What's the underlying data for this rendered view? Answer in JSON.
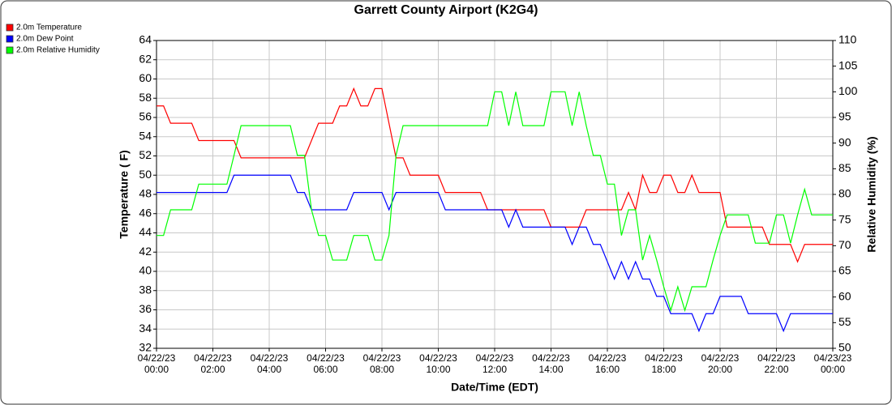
{
  "chart_data": {
    "type": "line",
    "title": "Garrett County Airport (K2G4)",
    "xlabel": "Date/Time (EDT)",
    "ylabel": "Temperature ( F)",
    "y2label": "Relative Humidity (%)",
    "x": [
      0,
      0.25,
      0.5,
      0.75,
      1,
      1.25,
      1.5,
      1.75,
      2,
      2.25,
      2.5,
      2.75,
      3,
      3.25,
      3.5,
      3.75,
      4,
      4.25,
      4.5,
      4.75,
      5,
      5.25,
      5.5,
      5.75,
      6,
      6.25,
      6.5,
      6.75,
      7,
      7.25,
      7.5,
      7.75,
      8,
      8.25,
      8.5,
      8.75,
      9,
      9.25,
      9.5,
      9.75,
      10,
      10.25,
      10.5,
      10.75,
      11,
      11.25,
      11.5,
      11.75,
      12,
      12.25,
      12.5,
      12.75,
      13,
      13.25,
      13.5,
      13.75,
      14,
      14.25,
      14.5,
      14.75,
      15,
      15.25,
      15.5,
      15.75,
      16,
      16.25,
      16.5,
      16.75,
      17,
      17.25,
      17.5,
      17.75,
      18,
      18.25,
      18.5,
      18.75,
      19,
      19.25,
      19.5,
      19.75,
      20,
      20.25,
      20.5,
      20.75,
      21,
      21.25,
      21.5,
      21.75,
      22,
      22.25,
      22.5,
      22.75,
      23,
      23.25,
      23.5,
      23.75,
      24
    ],
    "series": [
      {
        "name": "2.0m Temperature",
        "color": "#ff0000",
        "axis": "y",
        "values": [
          57.2,
          57.2,
          55.4,
          55.4,
          55.4,
          55.4,
          53.6,
          53.6,
          53.6,
          53.6,
          53.6,
          53.6,
          51.8,
          51.8,
          51.8,
          51.8,
          51.8,
          51.8,
          51.8,
          51.8,
          51.8,
          51.8,
          53.6,
          55.4,
          55.4,
          55.4,
          57.2,
          57.2,
          59,
          57.2,
          57.2,
          59,
          59,
          55.4,
          51.8,
          51.8,
          50,
          50,
          50,
          50,
          50,
          48.2,
          48.2,
          48.2,
          48.2,
          48.2,
          48.2,
          46.4,
          46.4,
          46.4,
          46.4,
          46.4,
          46.4,
          46.4,
          46.4,
          46.4,
          44.6,
          44.6,
          44.6,
          44.6,
          44.6,
          46.4,
          46.4,
          46.4,
          46.4,
          46.4,
          46.4,
          48.2,
          46.4,
          50,
          48.2,
          48.2,
          50,
          50,
          48.2,
          48.2,
          50,
          48.2,
          48.2,
          48.2,
          48.2,
          44.6,
          44.6,
          44.6,
          44.6,
          44.6,
          44.6,
          42.8,
          42.8,
          42.8,
          42.8,
          41,
          42.8,
          42.8,
          42.8,
          42.8,
          42.8
        ]
      },
      {
        "name": "2.0m Dew Point",
        "color": "#0000ff",
        "axis": "y",
        "values": [
          48.2,
          48.2,
          48.2,
          48.2,
          48.2,
          48.2,
          48.2,
          48.2,
          48.2,
          48.2,
          48.2,
          50,
          50,
          50,
          50,
          50,
          50,
          50,
          50,
          50,
          48.2,
          48.2,
          46.4,
          46.4,
          46.4,
          46.4,
          46.4,
          46.4,
          48.2,
          48.2,
          48.2,
          48.2,
          48.2,
          46.4,
          48.2,
          48.2,
          48.2,
          48.2,
          48.2,
          48.2,
          48.2,
          46.4,
          46.4,
          46.4,
          46.4,
          46.4,
          46.4,
          46.4,
          46.4,
          46.4,
          44.6,
          46.4,
          44.6,
          44.6,
          44.6,
          44.6,
          44.6,
          44.6,
          44.6,
          42.8,
          44.6,
          44.6,
          42.8,
          42.8,
          41,
          39.2,
          41,
          39.2,
          41,
          39.2,
          39.2,
          37.4,
          37.4,
          35.6,
          35.6,
          35.6,
          35.6,
          33.8,
          35.6,
          35.6,
          37.4,
          37.4,
          37.4,
          37.4,
          35.6,
          35.6,
          35.6,
          35.6,
          35.6,
          33.8,
          35.6,
          35.6,
          35.6,
          35.6,
          35.6,
          35.6,
          35.6
        ]
      },
      {
        "name": "2.0m Relative Humidity",
        "color": "#00ff00",
        "axis": "y2",
        "values": [
          72,
          72,
          77,
          77,
          77,
          77,
          82,
          82,
          82,
          82,
          82,
          87.6,
          93.4,
          93.4,
          93.4,
          93.4,
          93.4,
          93.4,
          93.4,
          93.4,
          87.6,
          87.6,
          77,
          72,
          72,
          67.2,
          67.2,
          67.2,
          72,
          72,
          72,
          67.2,
          67.2,
          72,
          87.6,
          93.4,
          93.4,
          93.4,
          93.4,
          93.4,
          93.4,
          93.4,
          93.4,
          93.4,
          93.4,
          93.4,
          93.4,
          93.4,
          100,
          100,
          93.4,
          100,
          93.4,
          93.4,
          93.4,
          93.4,
          100,
          100,
          100,
          93.4,
          100,
          93.4,
          87.6,
          87.6,
          82,
          82,
          72,
          77,
          77,
          67.2,
          72,
          67.2,
          62,
          57.4,
          62,
          57.4,
          62,
          62,
          62,
          67.2,
          72,
          76,
          76,
          76,
          76,
          70.5,
          70.5,
          70.5,
          76,
          76,
          70.5,
          76,
          81,
          76,
          76,
          76,
          76
        ]
      }
    ],
    "xlim": [
      0,
      24
    ],
    "xticks": [
      {
        "value": 0,
        "label": "04/22/23\n00:00"
      },
      {
        "value": 2,
        "label": "04/22/23\n02:00"
      },
      {
        "value": 4,
        "label": "04/22/23\n04:00"
      },
      {
        "value": 6,
        "label": "04/22/23\n06:00"
      },
      {
        "value": 8,
        "label": "04/22/23\n08:00"
      },
      {
        "value": 10,
        "label": "04/22/23\n10:00"
      },
      {
        "value": 12,
        "label": "04/22/23\n12:00"
      },
      {
        "value": 14,
        "label": "04/22/23\n14:00"
      },
      {
        "value": 16,
        "label": "04/22/23\n16:00"
      },
      {
        "value": 18,
        "label": "04/22/23\n18:00"
      },
      {
        "value": 20,
        "label": "04/22/23\n20:00"
      },
      {
        "value": 22,
        "label": "04/22/23\n22:00"
      },
      {
        "value": 24,
        "label": "04/23/23\n00:00"
      }
    ],
    "ylim": [
      32,
      64
    ],
    "yticks": [
      32,
      34,
      36,
      38,
      40,
      42,
      44,
      46,
      48,
      50,
      52,
      54,
      56,
      58,
      60,
      62,
      64
    ],
    "y2lim": [
      50,
      110
    ],
    "y2ticks": [
      50,
      55,
      60,
      65,
      70,
      75,
      80,
      85,
      90,
      95,
      100,
      105,
      110
    ],
    "grid": true,
    "legend": "top-left"
  }
}
